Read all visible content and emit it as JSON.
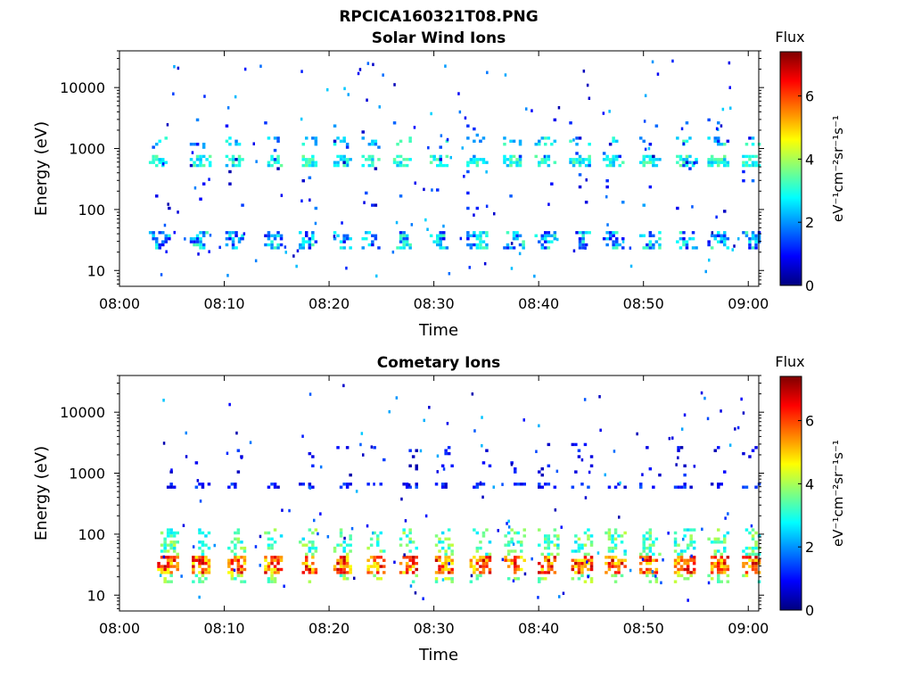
{
  "figure_title": "RPCICA160321T08.PNG",
  "colors": {
    "jet": [
      "#00007f",
      "#0000ff",
      "#007fff",
      "#00ffff",
      "#7fff7f",
      "#ffff00",
      "#ff7f00",
      "#ff0000",
      "#7f0000"
    ]
  },
  "chart_data": [
    {
      "type": "heatmap",
      "title": "Solar Wind Ions",
      "xlabel": "Time",
      "ylabel": "Energy (eV)",
      "x_ticks": [
        "08:00",
        "08:10",
        "08:20",
        "08:30",
        "08:40",
        "08:50",
        "09:00"
      ],
      "xlim_minutes": [
        0,
        61
      ],
      "y_scale": "log",
      "ylim": [
        5.5,
        40000
      ],
      "y_ticks": [
        10,
        100,
        1000,
        10000
      ],
      "y_tick_labels": [
        "10",
        "100",
        "1000",
        "10000"
      ],
      "colorbar": {
        "title": "Flux",
        "label": "eV⁻¹cm⁻²sr⁻¹s⁻¹",
        "range": [
          0,
          7.4
        ],
        "ticks": [
          0,
          2,
          4,
          6
        ],
        "tick_labels": [
          "0",
          "2",
          "4",
          "6"
        ]
      },
      "bursts_minutes": [
        3.7,
        7.6,
        11.0,
        14.7,
        18.0,
        21.3,
        24.0,
        27.0,
        30.5,
        34.0,
        37.5,
        40.5,
        43.8,
        47.0,
        50.5,
        54.0,
        57.0,
        60.3
      ],
      "bands": [
        {
          "e_lo": 450,
          "e_hi": 750,
          "flux": [
            2.2,
            3.6
          ],
          "density": 0.75
        },
        {
          "e_lo": 1100,
          "e_hi": 1500,
          "flux": [
            1.8,
            3.4
          ],
          "density": 0.3
        },
        {
          "e_lo": 20,
          "e_hi": 40,
          "flux": [
            0.8,
            3.4
          ],
          "density": 0.55
        },
        {
          "e_lo": 80,
          "e_hi": 3000,
          "flux": [
            0.3,
            2.2
          ],
          "density": 0.03
        }
      ]
    },
    {
      "type": "heatmap",
      "title": "Cometary Ions",
      "xlabel": "Time",
      "ylabel": "Energy (eV)",
      "x_ticks": [
        "08:00",
        "08:10",
        "08:20",
        "08:30",
        "08:40",
        "08:50",
        "09:00"
      ],
      "xlim_minutes": [
        0,
        61
      ],
      "y_scale": "log",
      "ylim": [
        5.5,
        40000
      ],
      "y_ticks": [
        10,
        100,
        1000,
        10000
      ],
      "y_tick_labels": [
        "10",
        "100",
        "1000",
        "10000"
      ],
      "colorbar": {
        "title": "Flux",
        "label": "eV⁻¹cm⁻²sr⁻¹s⁻¹",
        "range": [
          0,
          7.4
        ],
        "ticks": [
          0,
          2,
          4,
          6
        ],
        "tick_labels": [
          "0",
          "2",
          "4",
          "6"
        ]
      },
      "bursts_minutes": [
        4.5,
        7.8,
        11.2,
        14.7,
        18.0,
        21.3,
        24.5,
        27.6,
        31.0,
        34.3,
        37.6,
        40.8,
        44.0,
        47.2,
        50.5,
        53.8,
        57.0,
        60.3
      ],
      "bands": [
        {
          "e_lo": 20,
          "e_hi": 42,
          "flux": [
            4.5,
            7.0
          ],
          "density": 0.85
        },
        {
          "e_lo": 42,
          "e_hi": 120,
          "flux": [
            2.5,
            4.2
          ],
          "density": 0.4
        },
        {
          "e_lo": 500,
          "e_hi": 650,
          "flux": [
            0.5,
            1.6
          ],
          "density": 0.5
        },
        {
          "e_lo": 14,
          "e_hi": 20,
          "flux": [
            3.0,
            4.5
          ],
          "density": 0.35
        },
        {
          "e_lo": 800,
          "e_hi": 3000,
          "flux": [
            0.3,
            1.4
          ],
          "density": 0.05
        }
      ]
    }
  ]
}
